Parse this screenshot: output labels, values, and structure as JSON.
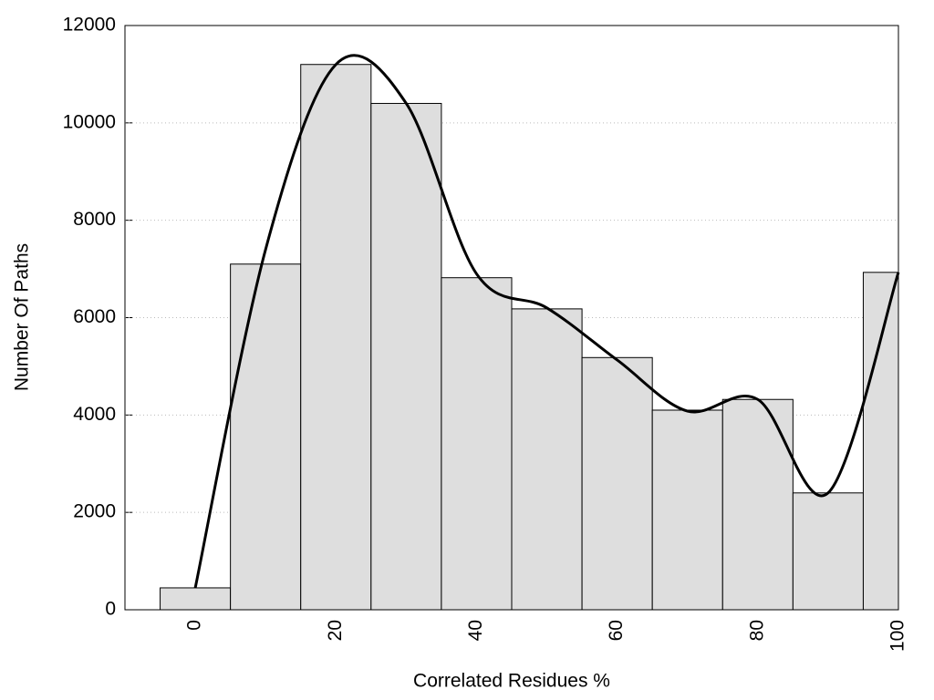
{
  "chart_data": {
    "type": "histogram",
    "xlabel": "Correlated Residues %",
    "ylabel": "Number Of Paths",
    "bins": [
      -5,
      5,
      15,
      25,
      35,
      45,
      55,
      65,
      75,
      85,
      95,
      100
    ],
    "values": [
      450,
      7100,
      11200,
      10400,
      6820,
      6180,
      5180,
      4100,
      4320,
      2400,
      6930
    ],
    "color": "#dedede",
    "curve": {
      "x": [
        0,
        10,
        20,
        30,
        40,
        50,
        60,
        70,
        80,
        90,
        100
      ],
      "values": [
        450,
        7400,
        11200,
        10400,
        6900,
        6200,
        5130,
        4080,
        4320,
        2400,
        6930
      ],
      "color": "#000000"
    },
    "xlim": [
      -10,
      100
    ],
    "ylim": [
      0,
      12000
    ],
    "xticks": [
      0,
      20,
      40,
      60,
      80,
      100
    ],
    "yticks": [
      0,
      2000,
      4000,
      6000,
      8000,
      10000,
      12000
    ],
    "grid": true
  }
}
